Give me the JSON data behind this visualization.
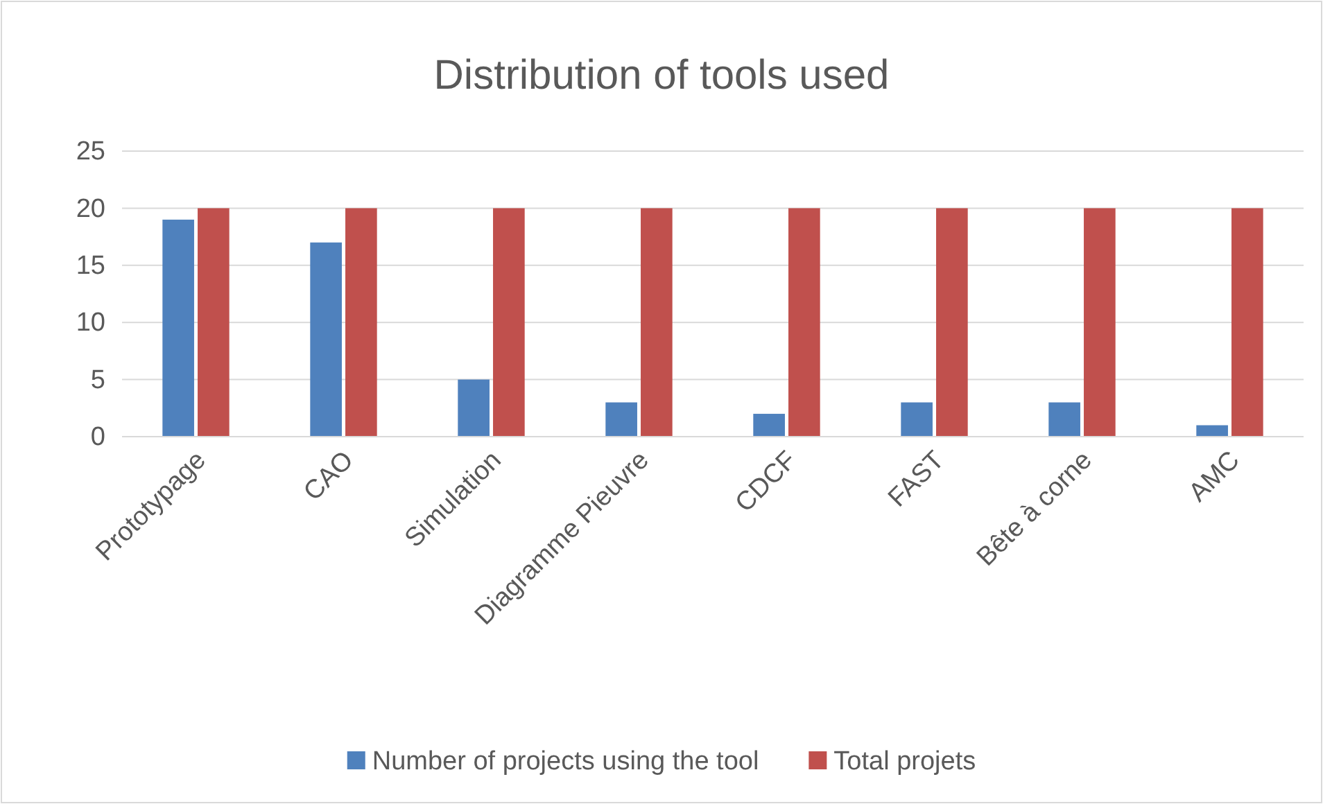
{
  "chart_data": {
    "type": "bar",
    "title": "Distribution of tools used",
    "categories": [
      "Prototypage",
      "CAO",
      "Simulation",
      "Diagramme Pieuvre",
      "CDCF",
      "FAST",
      "Bête à corne",
      "AMC"
    ],
    "series": [
      {
        "name": "Number of projects using the tool",
        "color": "#4f81bd",
        "values": [
          19,
          17,
          5,
          3,
          2,
          3,
          3,
          1
        ]
      },
      {
        "name": "Total projets",
        "color": "#c0504d",
        "values": [
          20,
          20,
          20,
          20,
          20,
          20,
          20,
          20
        ]
      }
    ],
    "ylim": [
      0,
      25
    ],
    "yticks": [
      0,
      5,
      10,
      15,
      20,
      25
    ],
    "grid": "y",
    "legend": "bottom"
  }
}
